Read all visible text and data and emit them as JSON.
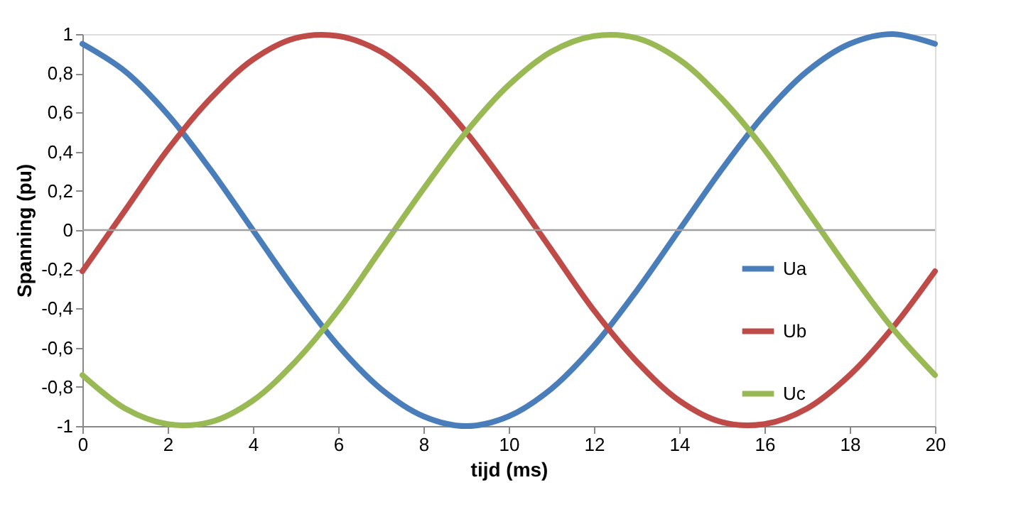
{
  "chart_data": {
    "type": "line",
    "xlabel": "tijd (ms)",
    "ylabel": "Spanning (pu)",
    "x": [
      0,
      1,
      2,
      3,
      4,
      5,
      6,
      7,
      8,
      9,
      10,
      11,
      12,
      13,
      14,
      15,
      16,
      17,
      18,
      19,
      20
    ],
    "series": [
      {
        "name": "Ua",
        "color": "#4a7ebb",
        "values": [
          0.95,
          0.81,
          0.59,
          0.31,
          0,
          -0.31,
          -0.59,
          -0.81,
          -0.95,
          -1,
          -0.95,
          -0.81,
          -0.59,
          -0.31,
          0,
          0.31,
          0.59,
          0.81,
          0.95,
          1,
          0.95
        ]
      },
      {
        "name": "Ub",
        "color": "#be4b48",
        "values": [
          -0.21,
          0.1,
          0.41,
          0.67,
          0.87,
          0.98,
          0.99,
          0.91,
          0.74,
          0.5,
          0.21,
          -0.1,
          -0.41,
          -0.67,
          -0.87,
          -0.98,
          -0.99,
          -0.91,
          -0.74,
          -0.5,
          -0.21
        ]
      },
      {
        "name": "Uc",
        "color": "#98b954",
        "values": [
          -0.74,
          -0.91,
          -0.99,
          -0.98,
          -0.87,
          -0.67,
          -0.41,
          -0.1,
          0.21,
          0.5,
          0.74,
          0.91,
          0.99,
          0.98,
          0.87,
          0.67,
          0.41,
          0.1,
          -0.21,
          -0.5,
          -0.74
        ]
      }
    ],
    "xlim": [
      0,
      20
    ],
    "xticks": [
      0,
      2,
      4,
      6,
      8,
      10,
      12,
      14,
      16,
      18,
      20
    ],
    "ylim": [
      -1,
      1
    ],
    "yticks": [
      -1,
      {
        "value": -0.8,
        "label": "-0,8"
      },
      {
        "value": -0.6,
        "label": "-0,6"
      },
      {
        "value": -0.4,
        "label": "-0,4"
      },
      {
        "value": -0.2,
        "label": "-0,2"
      },
      0,
      {
        "value": 0.2,
        "label": "0,2"
      },
      {
        "value": 0.4,
        "label": "0,4"
      },
      {
        "value": 0.6,
        "label": "0,6"
      },
      {
        "value": 0.8,
        "label": "0,8"
      },
      1
    ],
    "ref_lines": [
      {
        "axis": "y",
        "value": 0,
        "color": "#a0a0a0"
      }
    ],
    "grid": false,
    "legend": "right",
    "marker": "none",
    "line_style": "solid"
  }
}
